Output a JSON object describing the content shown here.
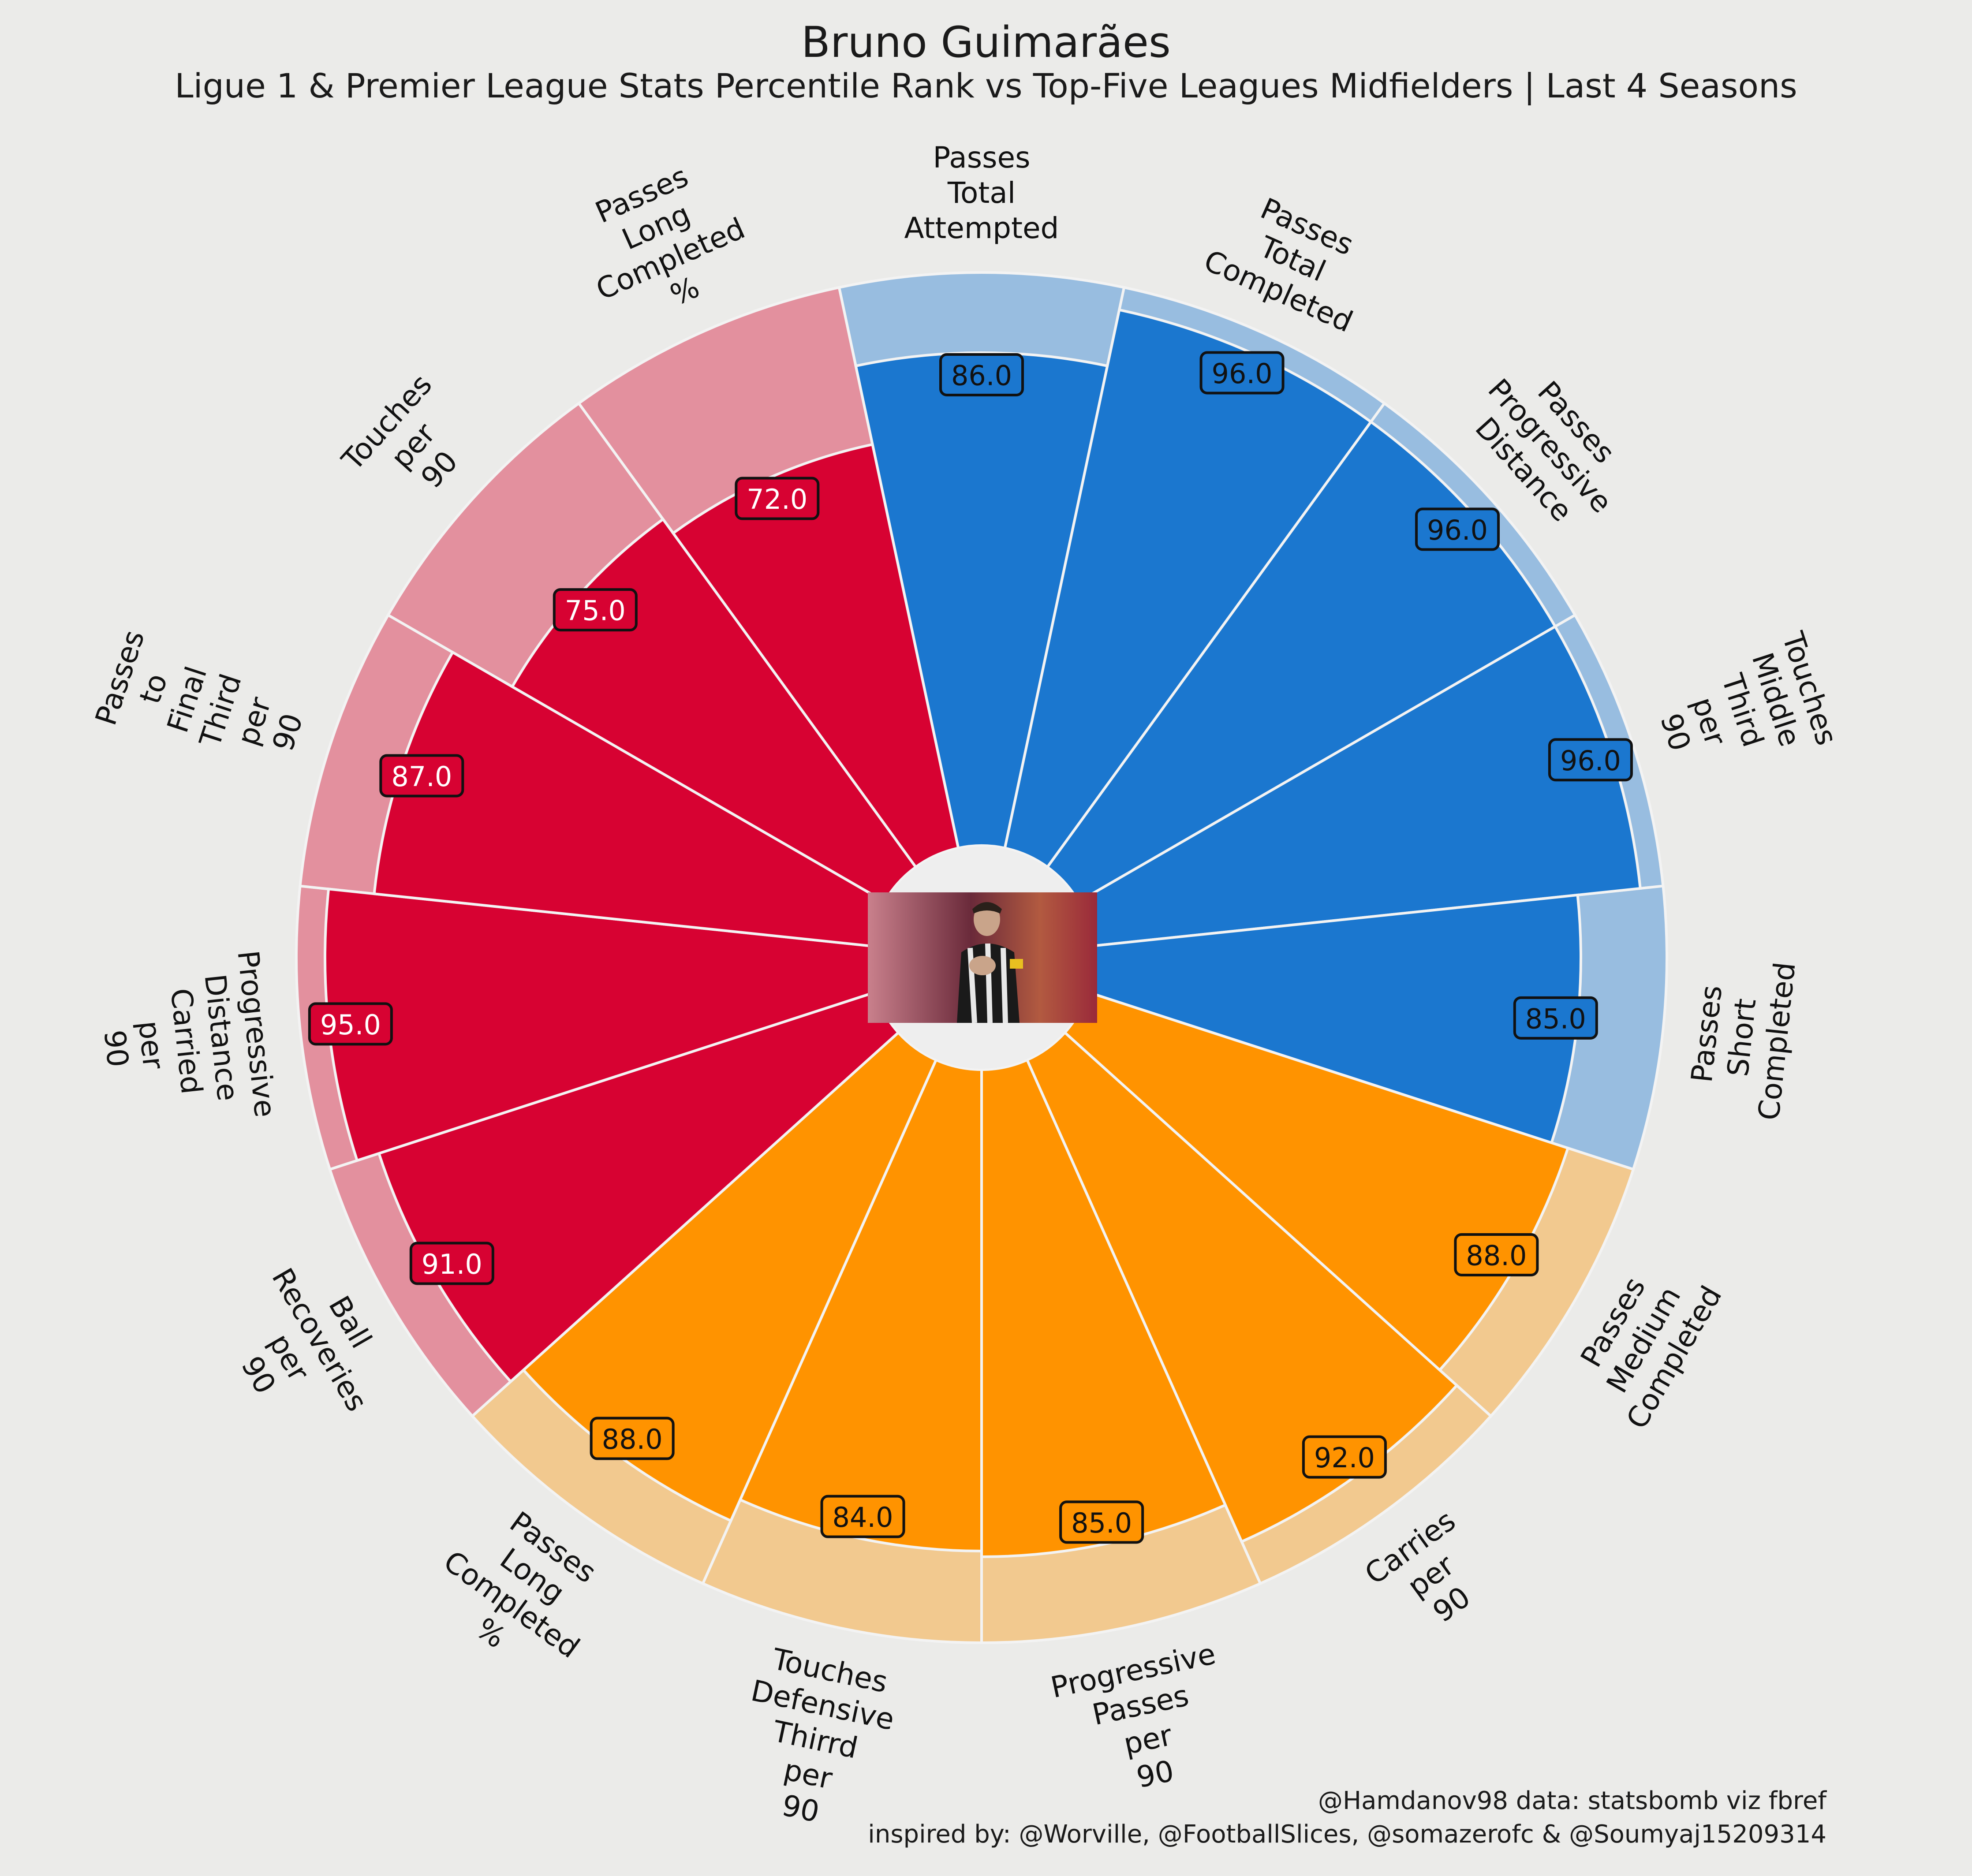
{
  "title": "Bruno Guimarães",
  "subtitle": "Ligue 1 & Premier League Stats Percentile Rank vs Top-Five Leagues Midfielders | Last 4 Seasons",
  "credit_line_1": "@Hamdanov98 data: statsbomb viz fbref",
  "credit_line_2": "inspired by: @Worville, @FootballSlices, @somazerofc & @Soumyaj15209314",
  "colors": {
    "background": "#ebebe9",
    "passing": "#1b77cf",
    "passing_bg": "#98bde0",
    "possession": "#d70232",
    "possession_bg": "#e3909e",
    "defending": "#ff9300",
    "defending_bg": "#f2c98f",
    "slice_edge": "#f3f3f3",
    "center_circle": "#eeeeee"
  },
  "chart_data": {
    "type": "polar-bar",
    "rlim": [
      0,
      100
    ],
    "value_format": "one decimal",
    "categories": [
      "Passes\nTotal\nAttempted",
      "Passes\nTotal\nCompleted",
      "Passes\nProgressive\nDistance",
      "Touches\nMiddle\nThird\nper\n90",
      "Passes\nShort\nCompleted",
      "Passes\nMedium\nCompleted",
      "Carries\nper\n90",
      "Progressive\nPasses\nper\n90",
      "Touches\nDefensive\nThirrd\nper\n90",
      "Passes\nLong\nCompleted\n%",
      "Ball\nRecoveries\nper\n90",
      "Progressive\nDistance\nCarried\nper\n90",
      "Passes\nto\nFinal\nThird\nper\n90",
      "Touches\nper\n90",
      "Passes\nLong\nCompleted\n%"
    ],
    "values": [
      86,
      96,
      96,
      96,
      85,
      88,
      92,
      85,
      84,
      88,
      91,
      95,
      87,
      75,
      72
    ],
    "value_labels": [
      "86.0",
      "96.0",
      "96.0",
      "96.0",
      "85.0",
      "88.0",
      "92.0",
      "85.0",
      "84.0",
      "88.0",
      "91.0",
      "95.0",
      "87.0",
      "75.0",
      "72.0"
    ],
    "groups": [
      "passing",
      "passing",
      "passing",
      "passing",
      "passing",
      "defending",
      "defending",
      "defending",
      "defending",
      "defending",
      "possession",
      "possession",
      "possession",
      "possession",
      "possession"
    ]
  }
}
